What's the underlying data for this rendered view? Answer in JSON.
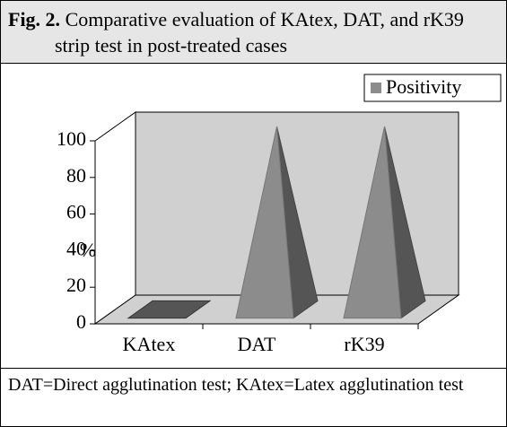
{
  "header": {
    "label": "Fig. 2.",
    "title": "Comparative evaluation of KAtex, DAT, and rK39 strip test in post-treated cases"
  },
  "chart_data": {
    "type": "pyramid",
    "categories": [
      "KAtex",
      "DAT",
      "rK39"
    ],
    "series": [
      {
        "name": "Positivity",
        "color": "#8c8c8c",
        "values": [
          0,
          100,
          100
        ]
      }
    ],
    "ylim": [
      0,
      100
    ],
    "yticks": [
      0,
      20,
      40,
      60,
      80,
      100
    ],
    "ylabel": "%",
    "legend": "top-right",
    "grid": false
  },
  "footer": {
    "text": "DAT=Direct agglutination test; KAtex=Latex agglutination test"
  }
}
